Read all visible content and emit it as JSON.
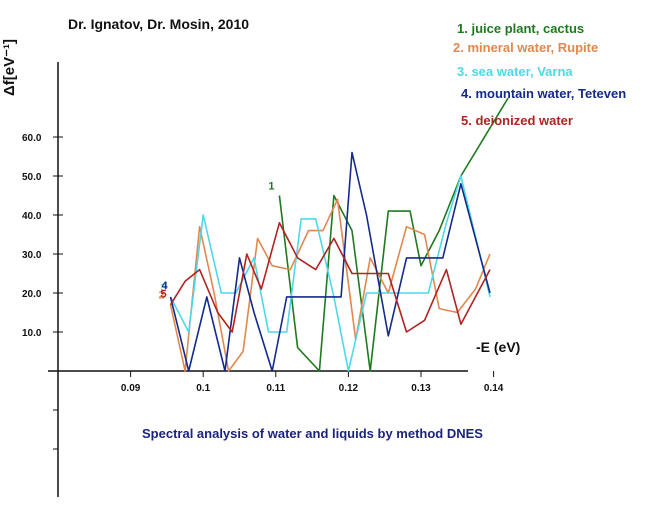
{
  "header": {
    "authors": "Dr. Ignatov, Dr. Mosin, 2010"
  },
  "chart_data": {
    "type": "line",
    "title": "",
    "caption": "Spectral analysis of water and liquids by method DNES",
    "xlabel": "-E (eV)",
    "ylabel": "Δf[eV⁻¹]",
    "xlim": [
      0.08,
      0.145
    ],
    "ylim": [
      0,
      70
    ],
    "x_ticks": [
      "0.09",
      "0.1",
      "0.11",
      "0.12",
      "0.13",
      "0.14"
    ],
    "y_ticks": [
      "10.0",
      "20.0",
      "30.0",
      "40.0",
      "50.0",
      "60.0"
    ],
    "grid": false,
    "legend_position": "top-right",
    "series": [
      {
        "name": "1. juice plant, cactus",
        "marker": "1",
        "color": "#1f7a1f",
        "x": [
          0.1105,
          0.113,
          0.116,
          0.118,
          0.1205,
          0.123,
          0.1255,
          0.1285,
          0.13,
          0.1325,
          0.1355,
          0.142
        ],
        "y": [
          45,
          6,
          0,
          45,
          36,
          0,
          41,
          41,
          27,
          36,
          50,
          70
        ]
      },
      {
        "name": "2. mineral water, Rupite",
        "marker": "2",
        "color": "#e08850",
        "x": [
          0.0955,
          0.0975,
          0.0995,
          0.1015,
          0.1035,
          0.1055,
          0.1075,
          0.1095,
          0.112,
          0.1145,
          0.1165,
          0.1185,
          0.121,
          0.123,
          0.1255,
          0.128,
          0.1305,
          0.1325,
          0.135,
          0.1375,
          0.1395
        ],
        "y": [
          17,
          0,
          37,
          20,
          0,
          5,
          34,
          27,
          26,
          36,
          36,
          44,
          8,
          29,
          20,
          37,
          35,
          16,
          15,
          21,
          30
        ]
      },
      {
        "name": "3. sea water, Varna",
        "marker": "3",
        "color": "#4fd8e8",
        "x": [
          0.0955,
          0.098,
          0.1,
          0.1025,
          0.1045,
          0.107,
          0.109,
          0.1115,
          0.1135,
          0.1155,
          0.118,
          0.12,
          0.1225,
          0.1255,
          0.1285,
          0.131,
          0.1335,
          0.1355,
          0.1395
        ],
        "y": [
          19,
          10,
          40,
          20,
          20,
          29,
          10,
          10,
          39,
          39,
          19,
          0,
          20,
          20,
          20,
          20,
          38,
          50,
          19
        ]
      },
      {
        "name": "4. mountain water, Teteven",
        "marker": "4",
        "color": "#142a8c",
        "x": [
          0.0955,
          0.098,
          0.1005,
          0.103,
          0.105,
          0.107,
          0.1095,
          0.1115,
          0.114,
          0.1165,
          0.119,
          0.1205,
          0.1225,
          0.1255,
          0.128,
          0.1305,
          0.133,
          0.1355,
          0.1395
        ],
        "y": [
          19,
          0,
          19,
          0,
          29,
          15,
          0,
          19,
          19,
          19,
          19,
          56,
          40,
          9,
          29,
          29,
          29,
          48,
          20
        ]
      },
      {
        "name": "5. deionized water",
        "marker": "5",
        "color": "#b22222",
        "x": [
          0.0955,
          0.0975,
          0.0995,
          0.102,
          0.104,
          0.106,
          0.108,
          0.1105,
          0.113,
          0.1155,
          0.118,
          0.1205,
          0.123,
          0.1255,
          0.128,
          0.1305,
          0.1335,
          0.1355,
          0.1395
        ],
        "y": [
          17,
          23,
          26,
          15,
          10,
          30,
          21,
          38,
          29,
          26,
          34,
          25,
          25,
          25,
          10,
          13,
          26,
          12,
          26
        ]
      }
    ]
  }
}
